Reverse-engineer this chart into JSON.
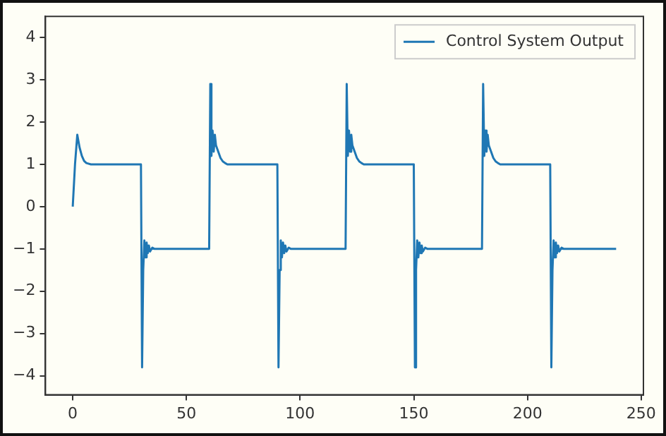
{
  "chart_data": {
    "type": "line",
    "xlim": [
      -12,
      251
    ],
    "xticks": [
      0,
      50,
      100,
      150,
      200,
      250
    ],
    "ylim": [
      -4.45,
      4.5
    ],
    "yticks": [
      -4,
      -3,
      -2,
      -1,
      0,
      1,
      2,
      3,
      4
    ],
    "grid": false,
    "legend": "top right",
    "marker": "none",
    "line_style": "solid",
    "series": [
      {
        "name": "Control System Output",
        "color": "#1f77b4",
        "x": [
          0,
          1,
          2,
          3,
          4,
          5,
          6,
          8,
          30,
          30.5,
          31,
          31.5,
          32,
          32.5,
          33,
          33.5,
          34,
          35,
          36,
          60,
          60.5,
          61,
          61.5,
          62,
          62.5,
          63,
          64,
          65,
          66,
          67,
          68,
          90,
          90.5,
          91,
          91.5,
          92,
          92.5,
          93,
          93.5,
          94,
          95,
          96,
          120,
          120.5,
          121,
          121.5,
          122,
          122.5,
          123,
          124,
          125,
          126,
          127,
          128,
          150,
          150.5,
          151,
          151.5,
          152,
          152.5,
          153,
          153.5,
          154,
          155,
          156,
          180,
          180.5,
          181,
          181.5,
          182,
          182.5,
          183,
          184,
          185,
          186,
          187,
          188,
          210,
          210.5,
          211,
          211.5,
          212,
          212.5,
          213,
          213.5,
          214,
          215,
          216,
          239
        ],
        "values": [
          0,
          1.0,
          1.7,
          1.4,
          1.2,
          1.08,
          1.03,
          1.0,
          1.0,
          -3.8,
          -1.5,
          -0.8,
          -1.2,
          -0.85,
          -1.1,
          -0.92,
          -1.06,
          -0.97,
          -1.0,
          -1.0,
          2.9,
          1.2,
          1.8,
          1.3,
          1.7,
          1.45,
          1.3,
          1.15,
          1.07,
          1.03,
          1.0,
          1.0,
          -3.8,
          -1.5,
          -0.8,
          -1.2,
          -0.85,
          -1.1,
          -0.92,
          -1.06,
          -0.97,
          -1.0,
          -1.0,
          2.9,
          1.2,
          1.8,
          1.3,
          1.7,
          1.45,
          1.3,
          1.15,
          1.07,
          1.03,
          1.0,
          1.0,
          -3.8,
          -1.5,
          -0.8,
          -1.2,
          -0.85,
          -1.1,
          -0.92,
          -1.06,
          -0.97,
          -1.0,
          -1.0,
          2.9,
          1.2,
          1.8,
          1.3,
          1.7,
          1.45,
          1.3,
          1.15,
          1.07,
          1.03,
          1.0,
          1.0,
          -3.8,
          -1.5,
          -0.8,
          -1.2,
          -0.85,
          -1.1,
          -0.92,
          -1.06,
          -0.97,
          -1.0,
          -1.0
        ]
      }
    ]
  }
}
